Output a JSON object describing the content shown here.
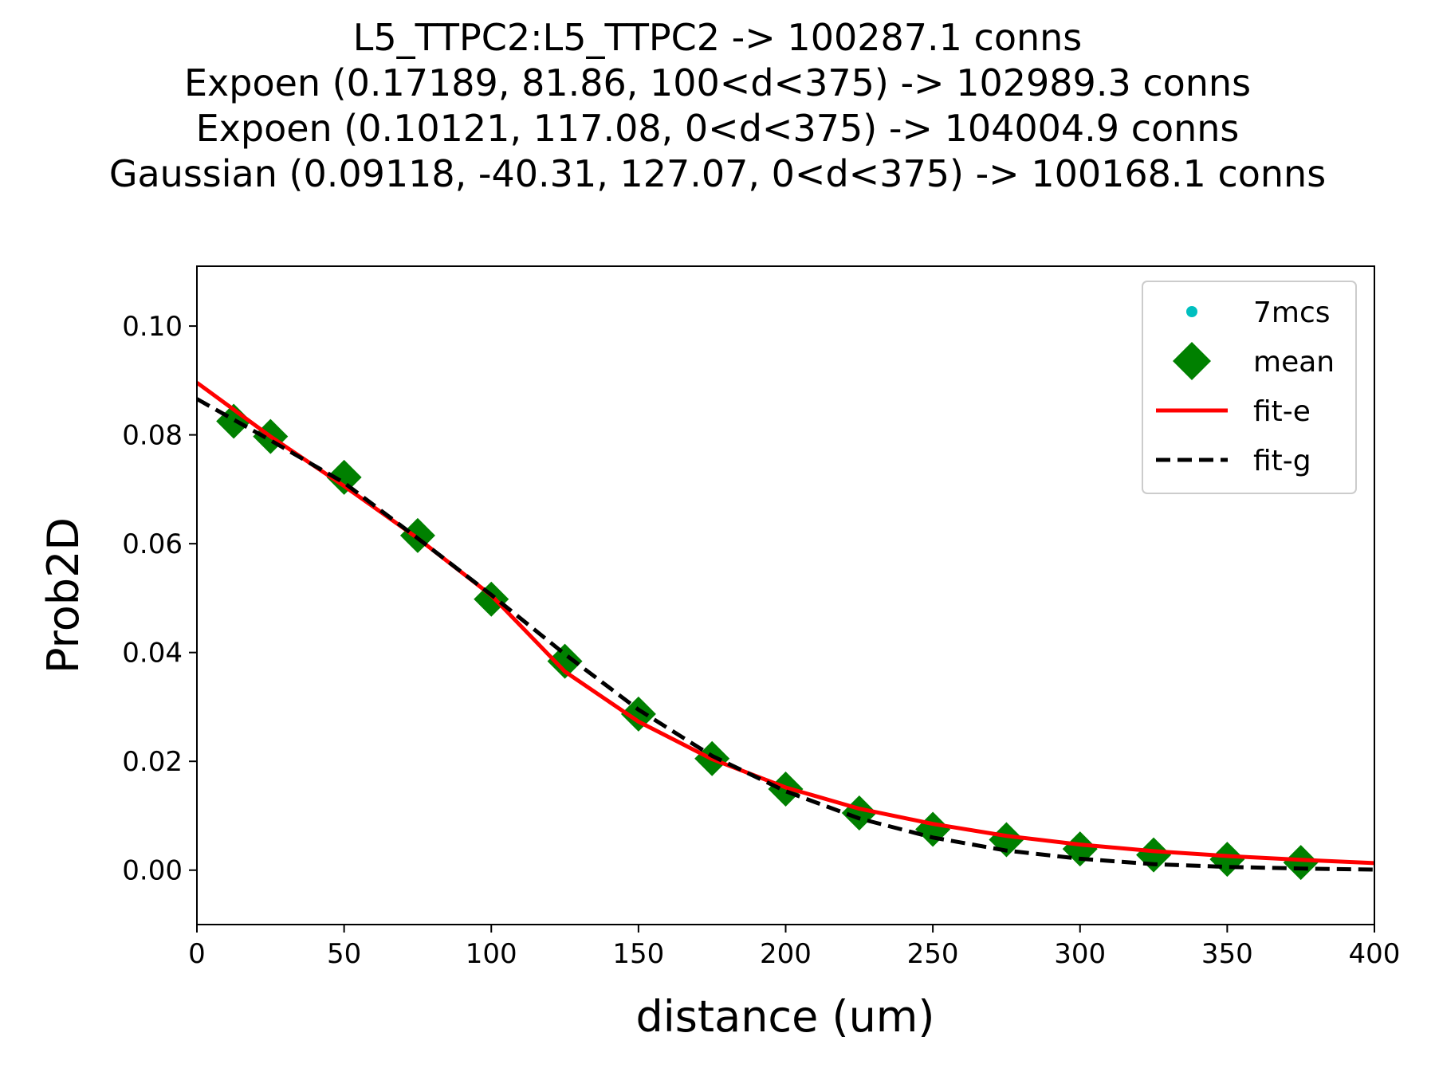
{
  "chart_data": {
    "type": "line",
    "title_lines": [
      "L5_TTPC2:L5_TTPC2 -> 100287.1 conns",
      "Expoen (0.17189, 81.86, 100<d<375) -> 102989.3 conns",
      "Expoen (0.10121, 117.08, 0<d<375) -> 104004.9 conns",
      "Gaussian (0.09118, -40.31, 127.07, 0<d<375) -> 100168.1 conns"
    ],
    "xlabel": "distance (um)",
    "ylabel": "Prob2D",
    "xlim": [
      0,
      400
    ],
    "ylim": [
      -0.01,
      0.111
    ],
    "xticks": [
      0,
      50,
      100,
      150,
      200,
      250,
      300,
      350,
      400
    ],
    "yticks": [
      0.0,
      0.02,
      0.04,
      0.06,
      0.08,
      0.1
    ],
    "ytick_labels": [
      "0.00",
      "0.02",
      "0.04",
      "0.06",
      "0.08",
      "0.10"
    ],
    "xtick_labels": [
      "0",
      "50",
      "100",
      "150",
      "200",
      "250",
      "300",
      "350",
      "400"
    ],
    "grid": false,
    "legend_position": "top-right",
    "series": [
      {
        "name": "7mcs",
        "kind": "scatter",
        "marker": "dot",
        "color": "#00bfbf",
        "x": [],
        "y": []
      },
      {
        "name": "mean",
        "kind": "scatter",
        "marker": "diamond",
        "color": "#008000",
        "x": [
          12.5,
          25,
          50,
          75,
          100,
          125,
          150,
          175,
          200,
          225,
          250,
          275,
          300,
          325,
          350,
          375
        ],
        "y": [
          0.0825,
          0.0797,
          0.0722,
          0.0615,
          0.0498,
          0.0384,
          0.0287,
          0.0205,
          0.0149,
          0.0105,
          0.0075,
          0.0056,
          0.0039,
          0.0028,
          0.002,
          0.0014
        ]
      },
      {
        "name": "fit-e",
        "kind": "line",
        "style": "solid",
        "color": "#ff0000",
        "x": [
          0,
          25,
          50,
          75,
          100,
          125,
          150,
          175,
          200,
          225,
          250,
          275,
          300,
          325,
          350,
          375,
          400
        ],
        "y": [
          0.0896,
          0.0797,
          0.0706,
          0.061,
          0.0505,
          0.0365,
          0.0273,
          0.0204,
          0.0152,
          0.0113,
          0.0085,
          0.0063,
          0.0047,
          0.0035,
          0.0026,
          0.0019,
          0.0013
        ]
      },
      {
        "name": "fit-g",
        "kind": "line",
        "style": "dashed",
        "color": "#000000",
        "x": [
          0,
          25,
          50,
          75,
          100,
          125,
          150,
          175,
          200,
          225,
          250,
          275,
          300,
          325,
          350,
          375,
          400
        ],
        "y": [
          0.0866,
          0.079,
          0.0712,
          0.061,
          0.0506,
          0.0397,
          0.0295,
          0.021,
          0.0145,
          0.0095,
          0.006,
          0.0036,
          0.0021,
          0.0011,
          0.0006,
          0.0003,
          0.0001
        ]
      }
    ]
  }
}
